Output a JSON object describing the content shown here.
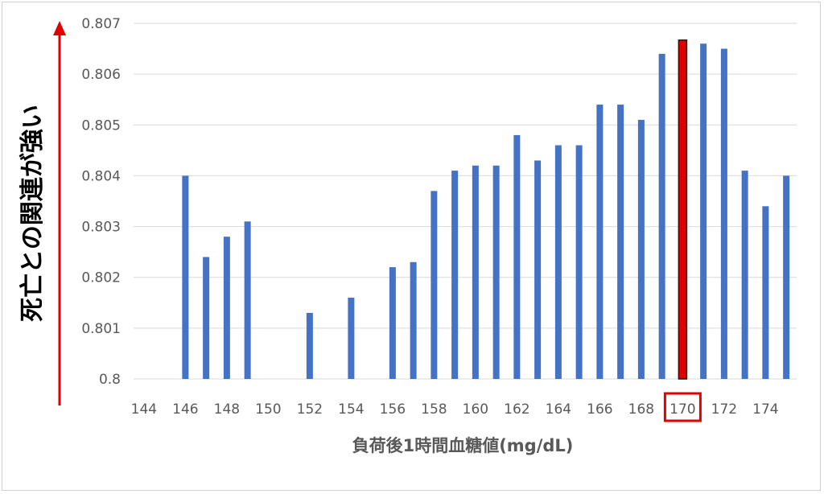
{
  "chart_data": {
    "type": "bar",
    "xlabel": "負荷後1時間血糖値(mg/dL)",
    "ylabel": "死亡との関連が強い",
    "ylim": [
      0.8,
      0.807
    ],
    "yticks": [
      "0.8",
      "0.801",
      "0.802",
      "0.803",
      "0.804",
      "0.805",
      "0.806",
      "0.807"
    ],
    "grid": true,
    "x": [
      144,
      145,
      146,
      147,
      148,
      149,
      150,
      151,
      152,
      153,
      154,
      155,
      156,
      157,
      158,
      159,
      160,
      161,
      162,
      163,
      164,
      165,
      166,
      167,
      168,
      169,
      170,
      171,
      172,
      173,
      174,
      175
    ],
    "xtick_labels": [
      "144",
      "146",
      "148",
      "150",
      "152",
      "154",
      "156",
      "158",
      "160",
      "162",
      "164",
      "166",
      "168",
      "170",
      "172",
      "174"
    ],
    "values": [
      null,
      null,
      0.804,
      0.8024,
      0.8028,
      0.8031,
      null,
      null,
      0.8013,
      null,
      0.8016,
      null,
      0.8022,
      0.8023,
      0.8037,
      0.8041,
      0.8042,
      0.8042,
      0.8048,
      0.8043,
      0.8046,
      0.8046,
      0.8054,
      0.8054,
      0.8051,
      0.8064,
      0.80667,
      0.8066,
      0.8065,
      0.8041,
      0.8034,
      0.804
    ],
    "highlight_x": 170,
    "colors": {
      "bar": "#4472C4",
      "highlight": "#E00000",
      "arrow": "#E00000",
      "grid": "#D9D9D9"
    }
  }
}
